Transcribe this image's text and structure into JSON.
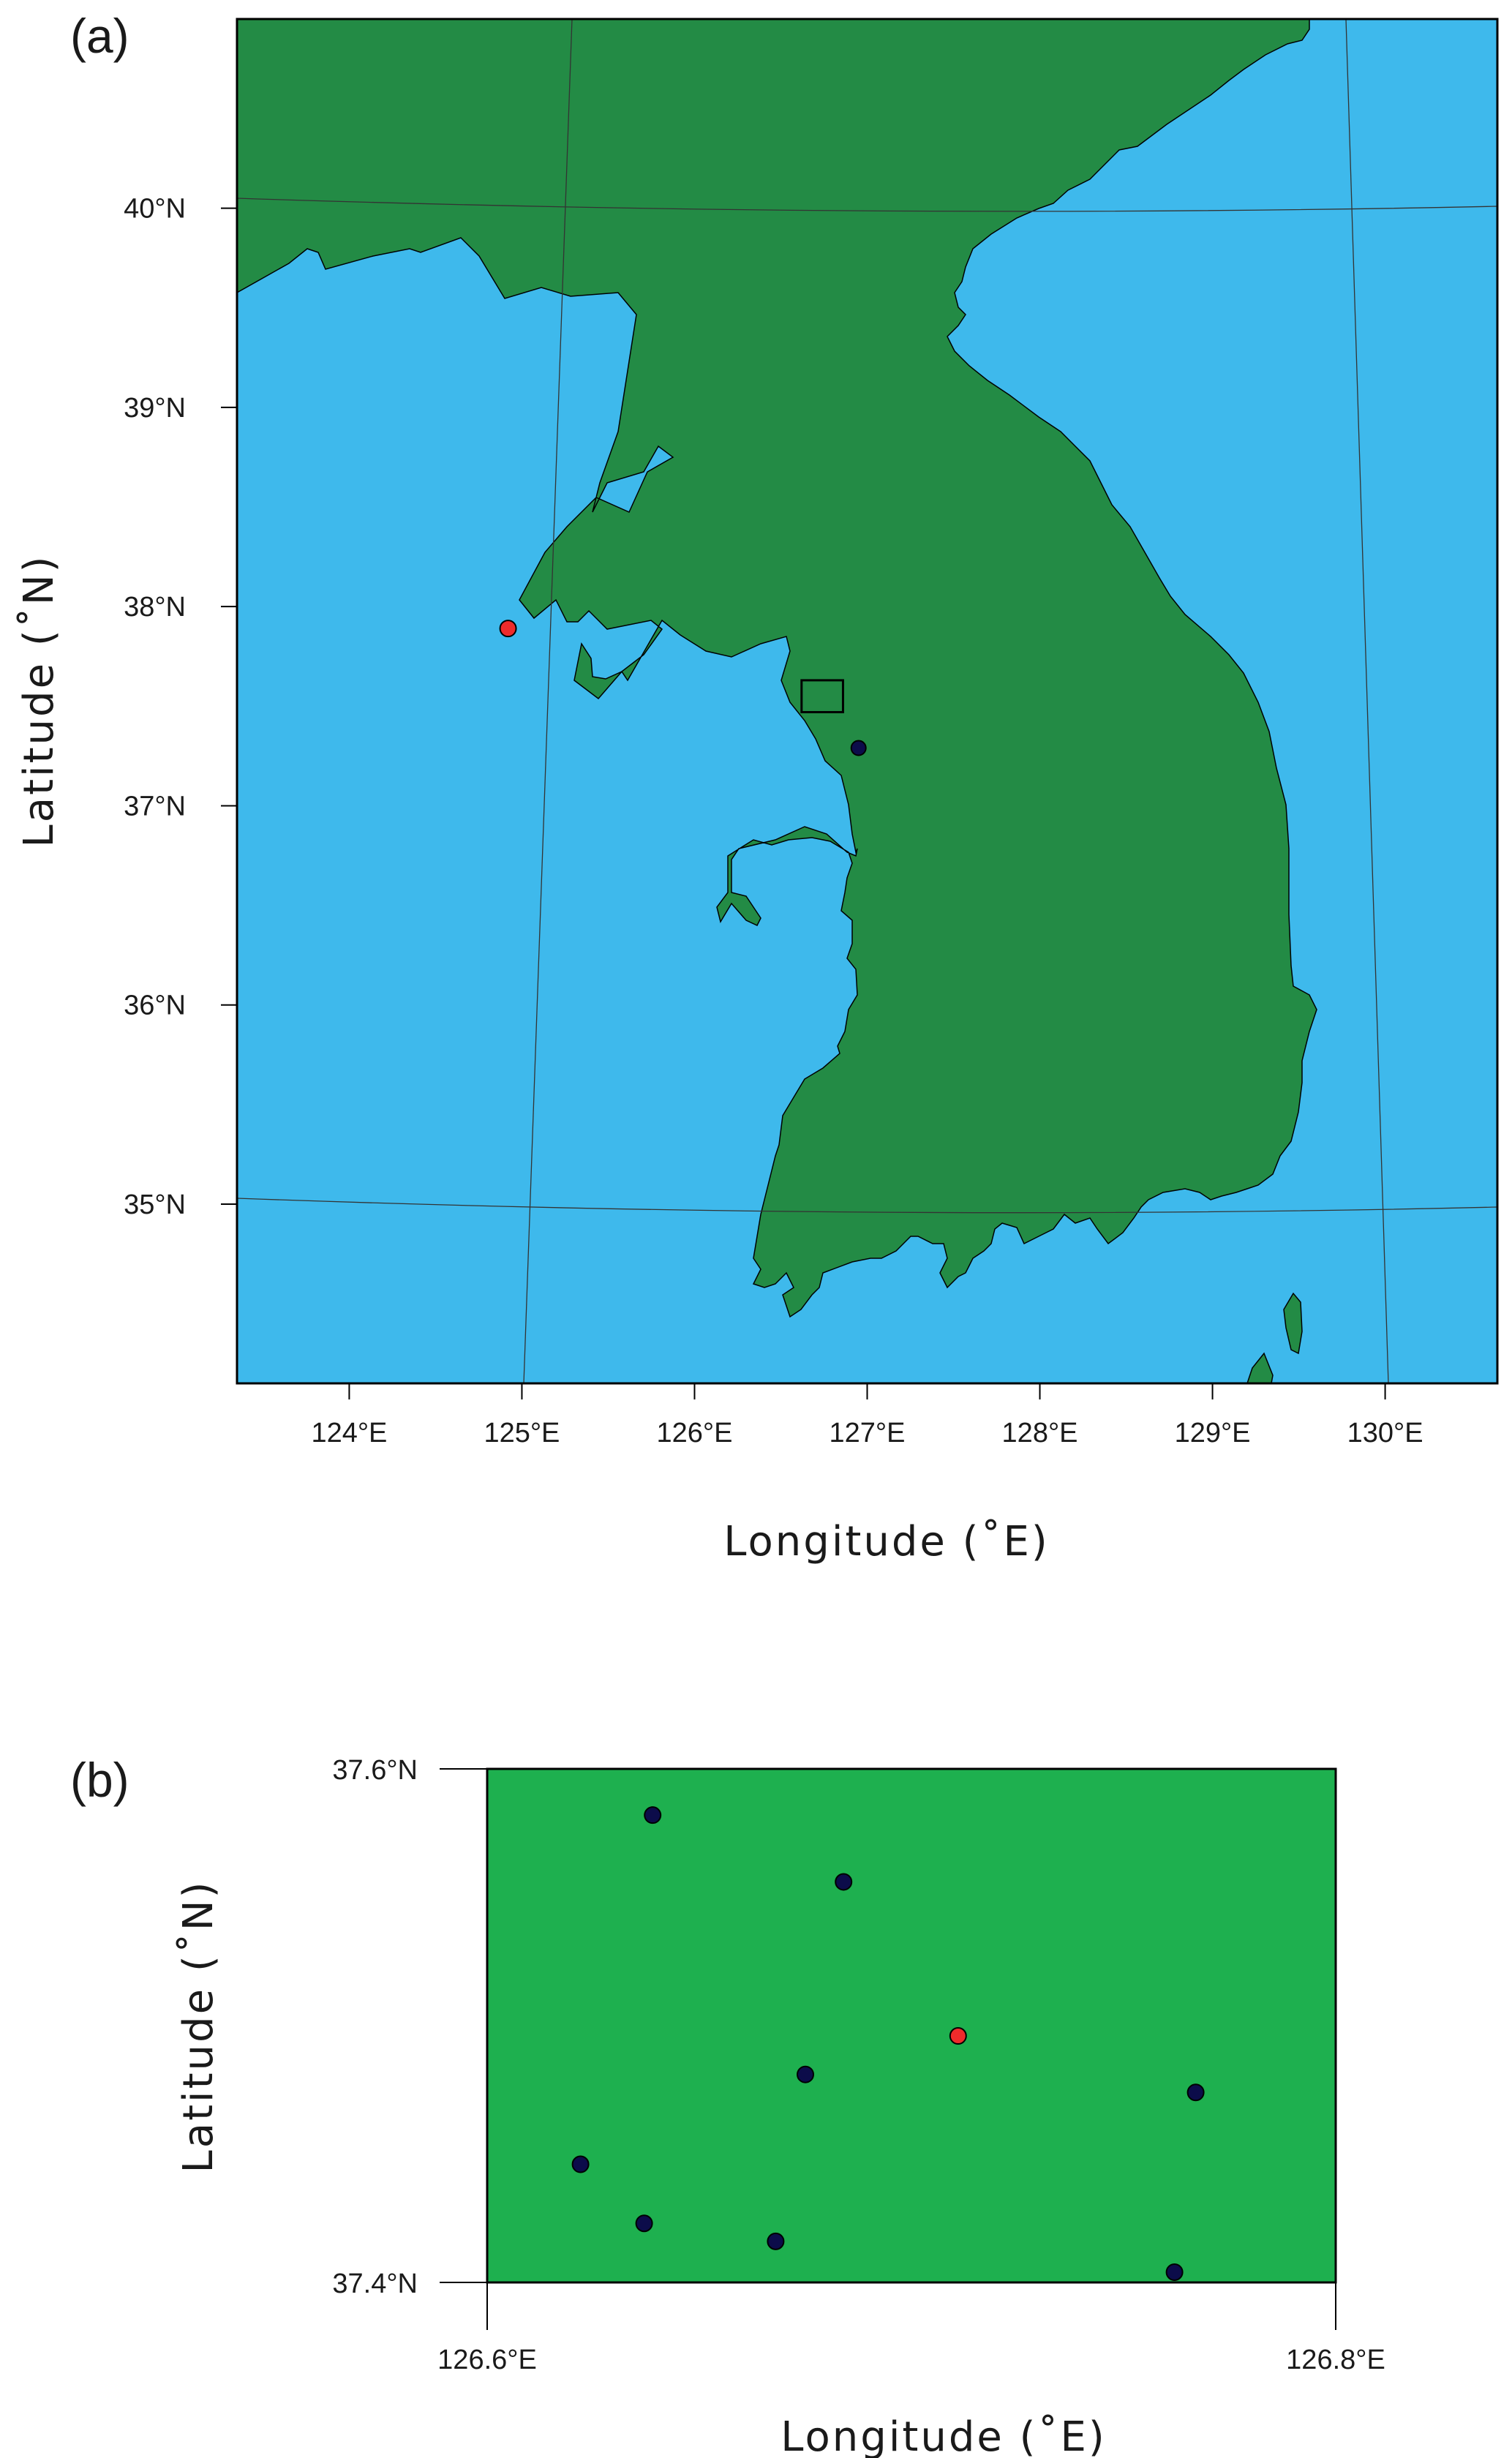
{
  "panel_a": {
    "label": "(a)",
    "xlabel": "Longitude (˚E)",
    "ylabel": "Latitude (˚N)",
    "x_ticks": [
      {
        "value": 124,
        "label": "124°E"
      },
      {
        "value": 125,
        "label": "125°E"
      },
      {
        "value": 126,
        "label": "126°E"
      },
      {
        "value": 127,
        "label": "127°E"
      },
      {
        "value": 128,
        "label": "128°E"
      },
      {
        "value": 129,
        "label": "129°E"
      },
      {
        "value": 130,
        "label": "130°E"
      }
    ],
    "y_ticks": [
      {
        "value": 40,
        "label": "40°N"
      },
      {
        "value": 39,
        "label": "39°N"
      },
      {
        "value": 38,
        "label": "38°N"
      },
      {
        "value": 37,
        "label": "37°N"
      },
      {
        "value": 36,
        "label": "36°N"
      },
      {
        "value": 35,
        "label": "35°N"
      }
    ],
    "lon_range": [
      123.35,
      130.65
    ],
    "lat_range": [
      34.1,
      40.95
    ],
    "colors": {
      "sea": "#3eb9ec",
      "land": "#238b45",
      "coast": "#000000"
    },
    "markers": [
      {
        "lon": 124.92,
        "lat": 37.89,
        "color": "#ee2b2b",
        "kind": "red-station"
      },
      {
        "lon": 126.95,
        "lat": 37.29,
        "color": "#0c0c4a",
        "kind": "dark-station"
      }
    ],
    "subdomain_box": {
      "lon": [
        126.62,
        126.86
      ],
      "lat": [
        37.47,
        37.63
      ]
    }
  },
  "panel_b": {
    "label": "(b)",
    "xlabel": "Longitude (˚E)",
    "ylabel": "Latitude (˚N)",
    "x_ticks": [
      {
        "value": 126.6,
        "label": "126.6°E"
      },
      {
        "value": 126.8,
        "label": "126.8°E"
      }
    ],
    "y_ticks": [
      {
        "value": 37.6,
        "label": "37.6°N"
      },
      {
        "value": 37.4,
        "label": "37.4°N"
      }
    ],
    "lon_range": [
      126.6,
      126.8
    ],
    "lat_range": [
      37.4,
      37.6
    ],
    "colors": {
      "land": "#1eb04f"
    },
    "stations": [
      {
        "lon": 126.639,
        "lat": 37.582,
        "color": "#0c0c4a"
      },
      {
        "lon": 126.684,
        "lat": 37.556,
        "color": "#0c0c4a"
      },
      {
        "lon": 126.711,
        "lat": 37.496,
        "color": "#ee2b2b"
      },
      {
        "lon": 126.675,
        "lat": 37.481,
        "color": "#0c0c4a"
      },
      {
        "lon": 126.767,
        "lat": 37.474,
        "color": "#0c0c4a"
      },
      {
        "lon": 126.622,
        "lat": 37.446,
        "color": "#0c0c4a"
      },
      {
        "lon": 126.637,
        "lat": 37.423,
        "color": "#0c0c4a"
      },
      {
        "lon": 126.668,
        "lat": 37.416,
        "color": "#0c0c4a"
      },
      {
        "lon": 126.762,
        "lat": 37.404,
        "color": "#0c0c4a"
      }
    ]
  }
}
